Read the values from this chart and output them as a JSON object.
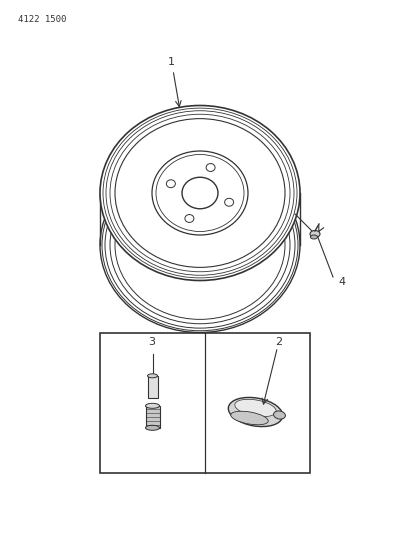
{
  "part_number": "4122 1500",
  "background_color": "#ffffff",
  "line_color": "#333333",
  "fig_width": 4.08,
  "fig_height": 5.33,
  "dpi": 100,
  "title_text": "4122 1500"
}
